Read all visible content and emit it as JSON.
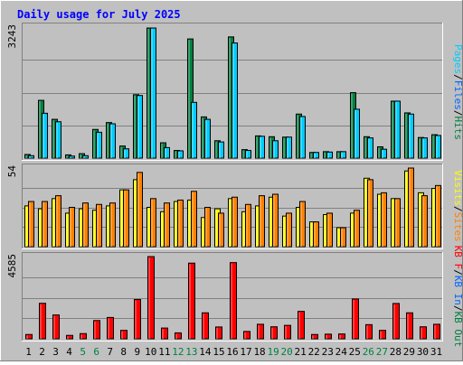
{
  "chart_data": [
    {
      "type": "bar",
      "title": "Daily usage for July 2025",
      "panel": "top",
      "categories": [
        "1",
        "2",
        "3",
        "4",
        "5",
        "6",
        "7",
        "8",
        "9",
        "10",
        "11",
        "12",
        "13",
        "14",
        "15",
        "16",
        "17",
        "18",
        "19",
        "20",
        "21",
        "22",
        "23",
        "24",
        "25",
        "26",
        "27",
        "28",
        "29",
        "30",
        "31"
      ],
      "ylabel_ticks": [
        "3243"
      ],
      "ylim": [
        0,
        3243
      ],
      "grid": true,
      "legend_side": "right",
      "legend": [
        {
          "text": "Pages",
          "color": "#00CCFF"
        },
        {
          "text": "Files",
          "color": "#0066FF"
        },
        {
          "text": "Hits",
          "color": "#008040"
        }
      ],
      "series": [
        {
          "name": "Hits",
          "color": "#008040",
          "values": [
            90,
            1430,
            960,
            80,
            110,
            710,
            880,
            300,
            1570,
            3220,
            380,
            190,
            2950,
            1020,
            430,
            3000,
            210,
            550,
            530,
            520,
            1090,
            140,
            160,
            160,
            1620,
            530,
            280,
            1410,
            1120,
            510,
            580
          ]
        },
        {
          "name": "Pages",
          "color": "#00CCFF",
          "values": [
            60,
            1110,
            900,
            50,
            60,
            640,
            850,
            230,
            1550,
            3220,
            260,
            180,
            1380,
            960,
            400,
            2850,
            190,
            540,
            430,
            520,
            1030,
            140,
            150,
            160,
            1210,
            500,
            220,
            1410,
            1090,
            500,
            560
          ]
        }
      ]
    },
    {
      "type": "bar",
      "panel": "middle",
      "categories": [
        "1",
        "2",
        "3",
        "4",
        "5",
        "6",
        "7",
        "8",
        "9",
        "10",
        "11",
        "12",
        "13",
        "14",
        "15",
        "16",
        "17",
        "18",
        "19",
        "20",
        "21",
        "22",
        "23",
        "24",
        "25",
        "26",
        "27",
        "28",
        "29",
        "30",
        "31"
      ],
      "ylabel_ticks": [
        "54"
      ],
      "ylim": [
        0,
        54
      ],
      "grid": true,
      "legend_side": "right",
      "legend": [
        {
          "text": "Visits",
          "color": "#FFFF00"
        },
        {
          "text": "Sites",
          "color": "#FF8000"
        }
      ],
      "series": [
        {
          "name": "Visits",
          "color": "#FFFF00",
          "values": [
            28,
            26,
            33,
            23,
            26,
            25,
            28,
            39,
            46,
            27,
            24,
            31,
            32,
            20,
            26,
            33,
            24,
            28,
            34,
            21,
            27,
            17,
            22,
            13,
            23,
            47,
            36,
            33,
            52,
            37,
            40
          ]
        },
        {
          "name": "Sites",
          "color": "#FF8000",
          "values": [
            31,
            31,
            35,
            27,
            30,
            29,
            30,
            39,
            51,
            33,
            30,
            32,
            38,
            27,
            23,
            34,
            29,
            35,
            36,
            23,
            31,
            17,
            23,
            13,
            25,
            46,
            37,
            33,
            54,
            35,
            42
          ]
        }
      ]
    },
    {
      "type": "bar",
      "panel": "bottom",
      "categories": [
        "1",
        "2",
        "3",
        "4",
        "5",
        "6",
        "7",
        "8",
        "9",
        "10",
        "11",
        "12",
        "13",
        "14",
        "15",
        "16",
        "17",
        "18",
        "19",
        "20",
        "21",
        "22",
        "23",
        "24",
        "25",
        "26",
        "27",
        "28",
        "29",
        "30",
        "31"
      ],
      "ylabel_ticks": [
        "4585"
      ],
      "ylim": [
        0,
        4585
      ],
      "grid": true,
      "legend_side": "right",
      "legend": [
        {
          "text": "KB F",
          "color": "#FF0000"
        },
        {
          "text": "KB In",
          "color": "#0066FF"
        },
        {
          "text": "KB Out",
          "color": "#008040"
        }
      ],
      "series": [
        {
          "name": "KB F",
          "color": "#FF0000",
          "values": [
            240,
            1980,
            1330,
            190,
            290,
            1020,
            1190,
            470,
            2190,
            4585,
            600,
            330,
            4220,
            1450,
            660,
            4250,
            410,
            810,
            670,
            750,
            1530,
            240,
            260,
            270,
            2220,
            790,
            470,
            1970,
            1450,
            670,
            810
          ]
        }
      ]
    }
  ],
  "x_axis": {
    "labels": [
      {
        "text": "1",
        "color": "#000000"
      },
      {
        "text": "2",
        "color": "#000000"
      },
      {
        "text": "3",
        "color": "#000000"
      },
      {
        "text": "4",
        "color": "#000000"
      },
      {
        "text": "5",
        "color": "#008040"
      },
      {
        "text": "6",
        "color": "#008040"
      },
      {
        "text": "7",
        "color": "#000000"
      },
      {
        "text": "8",
        "color": "#000000"
      },
      {
        "text": "9",
        "color": "#000000"
      },
      {
        "text": "10",
        "color": "#000000"
      },
      {
        "text": "11",
        "color": "#000000"
      },
      {
        "text": "12",
        "color": "#008040"
      },
      {
        "text": "13",
        "color": "#008040"
      },
      {
        "text": "14",
        "color": "#000000"
      },
      {
        "text": "15",
        "color": "#000000"
      },
      {
        "text": "16",
        "color": "#000000"
      },
      {
        "text": "17",
        "color": "#000000"
      },
      {
        "text": "18",
        "color": "#000000"
      },
      {
        "text": "19",
        "color": "#008040"
      },
      {
        "text": "20",
        "color": "#008040"
      },
      {
        "text": "21",
        "color": "#000000"
      },
      {
        "text": "22",
        "color": "#000000"
      },
      {
        "text": "23",
        "color": "#000000"
      },
      {
        "text": "24",
        "color": "#000000"
      },
      {
        "text": "25",
        "color": "#000000"
      },
      {
        "text": "26",
        "color": "#008040"
      },
      {
        "text": "27",
        "color": "#008040"
      },
      {
        "text": "28",
        "color": "#000000"
      },
      {
        "text": "29",
        "color": "#000000"
      },
      {
        "text": "30",
        "color": "#000000"
      },
      {
        "text": "31",
        "color": "#000000"
      }
    ]
  },
  "colors": {
    "background": "#C0C0C0",
    "panel_border_dark": "#808080",
    "panel_border_light": "#FFFFFF",
    "gridline": "#808080",
    "title": "#0000FF",
    "separator": "#000000"
  }
}
